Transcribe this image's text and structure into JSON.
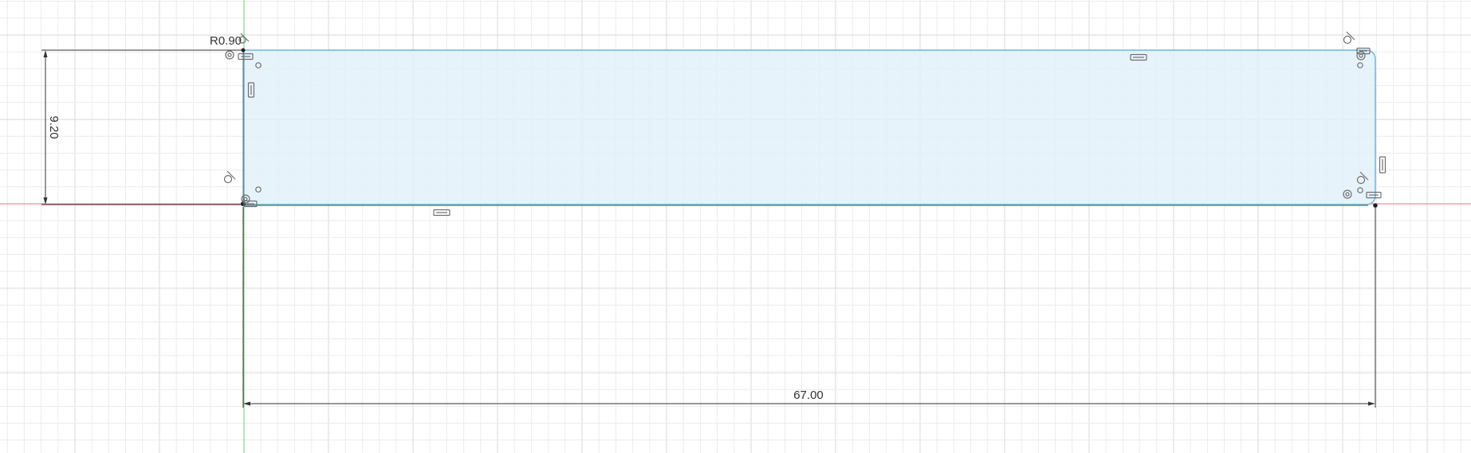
{
  "colors": {
    "background": "#ffffff",
    "grid_minor": "#ececec",
    "grid_major": "#d9d9d9",
    "x_axis": "#e37a7a",
    "y_axis": "#6fcf6f",
    "profile_stroke": "#6ab7dd",
    "profile_fill": "#e3f1fa",
    "dimension": "#333333",
    "constraint_icon": "#6f6f6f"
  },
  "dimensions": {
    "radius_label": "R0.90",
    "height_label": "9.20",
    "width_label": "67.00"
  },
  "sketch": {
    "profile_shape": "rectangle",
    "corner_fillet_radius": 0.9,
    "height": 9.2,
    "width": 67.0
  },
  "constraints": {
    "coincident_icon": "coincident-icon",
    "tangent_icon": "tangent-icon",
    "horizontal_icon": "horizontal-constraint-icon",
    "vertical_icon": "vertical-constraint-icon",
    "parallel_icon": "parallel-constraint-icon"
  }
}
